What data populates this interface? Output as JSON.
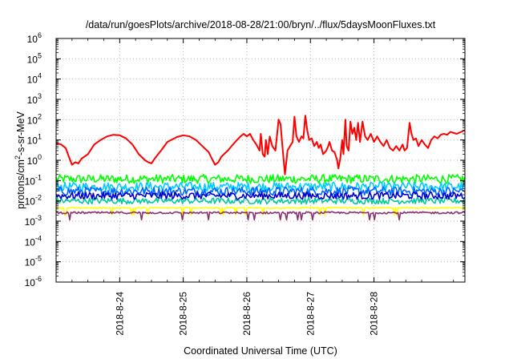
{
  "chart_data": {
    "type": "line",
    "title": "/data/run/goesPlots/archive/2018-08-28/21:00/bryn/../flux/5daysMoonFluxes.txt",
    "xlabel": "Coordinated Universal Time (UTC)",
    "ylabel_parts": [
      "protons/cm",
      "2",
      "-s-sr-MeV"
    ],
    "yscale": "log",
    "ylim": [
      -6,
      6
    ],
    "yticks": [
      {
        "exp": -6,
        "base": "10",
        "sup": "-6"
      },
      {
        "exp": -5,
        "base": "10",
        "sup": "-5"
      },
      {
        "exp": -4,
        "base": "10",
        "sup": "-4"
      },
      {
        "exp": -3,
        "base": "10",
        "sup": "-3"
      },
      {
        "exp": -2,
        "base": "10",
        "sup": "-2"
      },
      {
        "exp": -1,
        "base": "10",
        "sup": "-1"
      },
      {
        "exp": 0,
        "base": "10",
        "sup": "0"
      },
      {
        "exp": 1,
        "base": "10",
        "sup": "1"
      },
      {
        "exp": 2,
        "base": "10",
        "sup": "2"
      },
      {
        "exp": 3,
        "base": "10",
        "sup": "3"
      },
      {
        "exp": 4,
        "base": "10",
        "sup": "4"
      },
      {
        "exp": 5,
        "base": "10",
        "sup": "5"
      },
      {
        "exp": 6,
        "base": "10",
        "sup": "6"
      }
    ],
    "xlim": [
      0,
      6.43
    ],
    "xunit": "days since 2018-08-23 00:00",
    "xticks": [
      {
        "x": 1,
        "label": "2018-8-24"
      },
      {
        "x": 2,
        "label": "2018-8-25"
      },
      {
        "x": 3,
        "label": "2018-8-26"
      },
      {
        "x": 4,
        "label": "2018-8-27"
      },
      {
        "x": 5,
        "label": "2018-8-28"
      }
    ],
    "grid": true,
    "legend": "none",
    "series": [
      {
        "color": "#ff0000",
        "points": [
          [
            0.0,
            7
          ],
          [
            0.08,
            6
          ],
          [
            0.15,
            4
          ],
          [
            0.2,
            1.5
          ],
          [
            0.25,
            0.6
          ],
          [
            0.3,
            0.8
          ],
          [
            0.35,
            0.7
          ],
          [
            0.4,
            1.2
          ],
          [
            0.5,
            2
          ],
          [
            0.6,
            6
          ],
          [
            0.7,
            10
          ],
          [
            0.8,
            15
          ],
          [
            0.9,
            18
          ],
          [
            1.0,
            17
          ],
          [
            1.1,
            12
          ],
          [
            1.2,
            6
          ],
          [
            1.3,
            2
          ],
          [
            1.4,
            1
          ],
          [
            1.45,
            0.8
          ],
          [
            1.5,
            0.7
          ],
          [
            1.55,
            1.2
          ],
          [
            1.65,
            3
          ],
          [
            1.75,
            8
          ],
          [
            1.9,
            14
          ],
          [
            2.0,
            17
          ],
          [
            2.1,
            15
          ],
          [
            2.2,
            10
          ],
          [
            2.3,
            5
          ],
          [
            2.4,
            2.5
          ],
          [
            2.45,
            1.2
          ],
          [
            2.5,
            0.6
          ],
          [
            2.55,
            0.8
          ],
          [
            2.6,
            1.5
          ],
          [
            2.7,
            3
          ],
          [
            2.8,
            7
          ],
          [
            2.9,
            15
          ],
          [
            2.95,
            20
          ],
          [
            3.0,
            15
          ],
          [
            3.05,
            20
          ],
          [
            3.1,
            10
          ],
          [
            3.15,
            6
          ],
          [
            3.2,
            3
          ],
          [
            3.22,
            20
          ],
          [
            3.25,
            2
          ],
          [
            3.28,
            1.5
          ],
          [
            3.3,
            10
          ],
          [
            3.33,
            2
          ],
          [
            3.36,
            15
          ],
          [
            3.4,
            5
          ],
          [
            3.45,
            3
          ],
          [
            3.5,
            100
          ],
          [
            3.53,
            60
          ],
          [
            3.57,
            2
          ],
          [
            3.6,
            0.2
          ],
          [
            3.64,
            3
          ],
          [
            3.68,
            5
          ],
          [
            3.72,
            8
          ],
          [
            3.75,
            140
          ],
          [
            3.78,
            15
          ],
          [
            3.82,
            8
          ],
          [
            3.86,
            15
          ],
          [
            3.89,
            12
          ],
          [
            3.92,
            160
          ],
          [
            3.95,
            30
          ],
          [
            3.98,
            10
          ],
          [
            4.02,
            12
          ],
          [
            4.06,
            5
          ],
          [
            4.1,
            8
          ],
          [
            4.13,
            4
          ],
          [
            4.16,
            6
          ],
          [
            4.2,
            2
          ],
          [
            4.25,
            3
          ],
          [
            4.28,
            5
          ],
          [
            4.3,
            8
          ],
          [
            4.34,
            3
          ],
          [
            4.38,
            2.5
          ],
          [
            4.42,
            1
          ],
          [
            4.44,
            0.4
          ],
          [
            4.47,
            1.2
          ],
          [
            4.5,
            10
          ],
          [
            4.52,
            2
          ],
          [
            4.55,
            100
          ],
          [
            4.57,
            5
          ],
          [
            4.6,
            3
          ],
          [
            4.63,
            80
          ],
          [
            4.66,
            20
          ],
          [
            4.69,
            40
          ],
          [
            4.72,
            10
          ],
          [
            4.75,
            70
          ],
          [
            4.78,
            8
          ],
          [
            4.82,
            80
          ],
          [
            4.86,
            15
          ],
          [
            4.9,
            10
          ],
          [
            4.95,
            20
          ],
          [
            5.0,
            8
          ],
          [
            5.05,
            15
          ],
          [
            5.1,
            8
          ],
          [
            5.15,
            5
          ],
          [
            5.2,
            10
          ],
          [
            5.25,
            4
          ],
          [
            5.3,
            3
          ],
          [
            5.35,
            5
          ],
          [
            5.4,
            3
          ],
          [
            5.45,
            6
          ],
          [
            5.48,
            3
          ],
          [
            5.52,
            4
          ],
          [
            5.56,
            70
          ],
          [
            5.59,
            20
          ],
          [
            5.62,
            10
          ],
          [
            5.66,
            12
          ],
          [
            5.7,
            5
          ],
          [
            5.75,
            10
          ],
          [
            5.8,
            6
          ],
          [
            5.85,
            4
          ],
          [
            5.9,
            10
          ],
          [
            5.95,
            15
          ],
          [
            6.0,
            12
          ],
          [
            6.05,
            18
          ],
          [
            6.1,
            20
          ],
          [
            6.15,
            18
          ],
          [
            6.2,
            25
          ],
          [
            6.3,
            20
          ],
          [
            6.43,
            30
          ]
        ]
      },
      {
        "color": "#00ff00",
        "level": 0.12,
        "spread": 0.22
      },
      {
        "color": "#00ccff",
        "level": 0.05,
        "spread": 0.22
      },
      {
        "color": "#0066ff",
        "level": 0.03,
        "spread": 0.22
      },
      {
        "color": "#00c8a0",
        "level": 0.01,
        "spread": 0.15
      },
      {
        "color": "#0000cc",
        "level": 0.018,
        "spread": 0.18
      },
      {
        "color": "#ffff00",
        "level": 0.0045,
        "spread": 0.03
      },
      {
        "color": "#8b2f6f",
        "level": 0.0026,
        "spread": 0.05
      }
    ]
  }
}
